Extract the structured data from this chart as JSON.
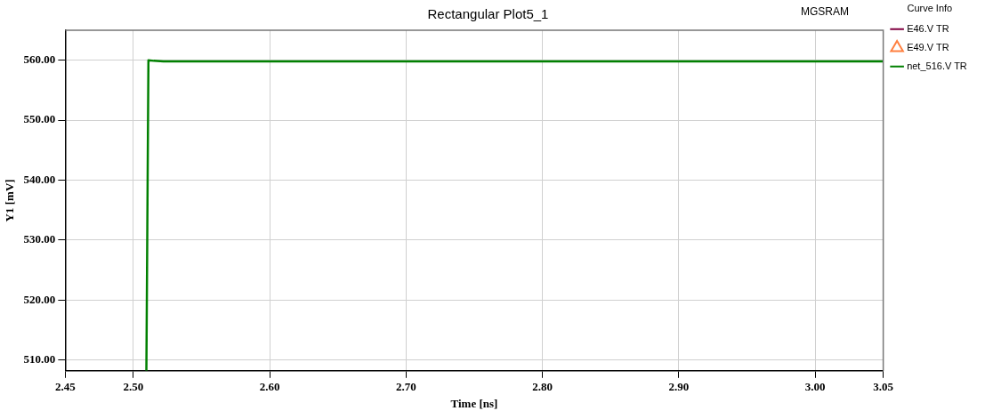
{
  "chart_data": {
    "type": "line",
    "title": "Rectangular Plot5_1",
    "xlabel": "Time [ns]",
    "ylabel": "Y1 [mV]",
    "legend_title": "Curve Info",
    "annotations": [
      "MGSRAM"
    ],
    "xlim": [
      2.45,
      3.05
    ],
    "xticks": [
      {
        "value": 2.45,
        "label": "2.45"
      },
      {
        "value": 2.5,
        "label": "2.50"
      },
      {
        "value": 2.6,
        "label": "2.60"
      },
      {
        "value": 2.7,
        "label": "2.70"
      },
      {
        "value": 2.8,
        "label": "2.80"
      },
      {
        "value": 2.9,
        "label": "2.90"
      },
      {
        "value": 3.0,
        "label": "3.00"
      },
      {
        "value": 3.05,
        "label": "3.05"
      }
    ],
    "ylim": [
      508.2,
      565
    ],
    "yticks": [
      {
        "value": 510,
        "label": "510.00"
      },
      {
        "value": 520,
        "label": "520.00"
      },
      {
        "value": 530,
        "label": "530.00"
      },
      {
        "value": 540,
        "label": "540.00"
      },
      {
        "value": 550,
        "label": "550.00"
      },
      {
        "value": 560,
        "label": "560.00"
      }
    ],
    "grid": true,
    "legend": "right",
    "line_style": "solid",
    "series": [
      {
        "name": "E46.V TR",
        "color": "#800040",
        "marker": "none"
      },
      {
        "name": "E49.V TR",
        "color": "#ff8040",
        "marker": "triangle"
      },
      {
        "name": "net_516.V TR",
        "color": "#008000",
        "x": [
          2.5095,
          2.511,
          2.515,
          2.522,
          3.05
        ],
        "values": [
          508.2,
          560,
          559.9,
          559.8,
          559.8
        ],
        "marker": "none"
      }
    ]
  }
}
